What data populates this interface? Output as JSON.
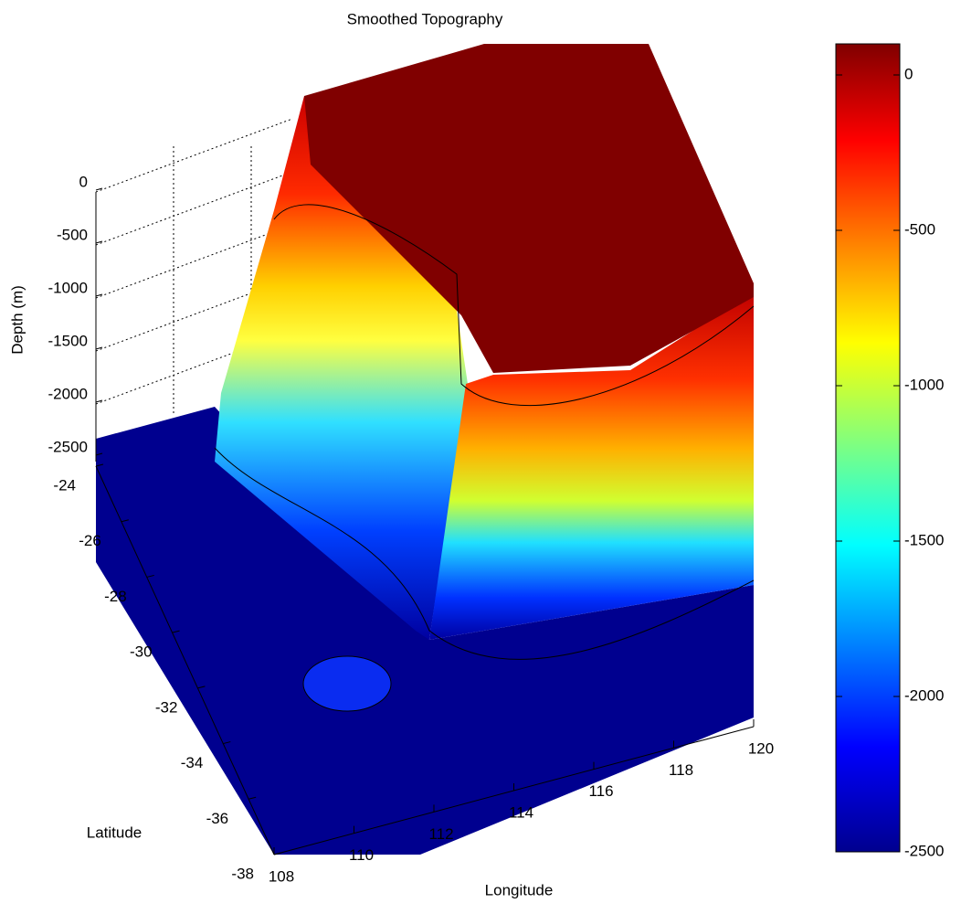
{
  "chart_data": {
    "type": "surface",
    "title": "Smoothed Topography",
    "xlabel": "Longitude",
    "ylabel": "Latitude",
    "zlabel": "Depth (m)",
    "xlim": [
      108,
      120
    ],
    "xticks": [
      108,
      110,
      112,
      114,
      116,
      118,
      120
    ],
    "ylim": [
      -24,
      -38
    ],
    "yticks": [
      -24,
      -26,
      -28,
      -30,
      -32,
      -34,
      -36,
      -38
    ],
    "zlim": [
      -2500,
      0
    ],
    "zticks": [
      0,
      -500,
      -1000,
      -1500,
      -2000,
      -2500
    ],
    "colormap": "jet",
    "clim": [
      -2500,
      100
    ],
    "cticks": [
      0,
      -500,
      -1000,
      -1500,
      -2000,
      -2500
    ],
    "grid": true
  }
}
